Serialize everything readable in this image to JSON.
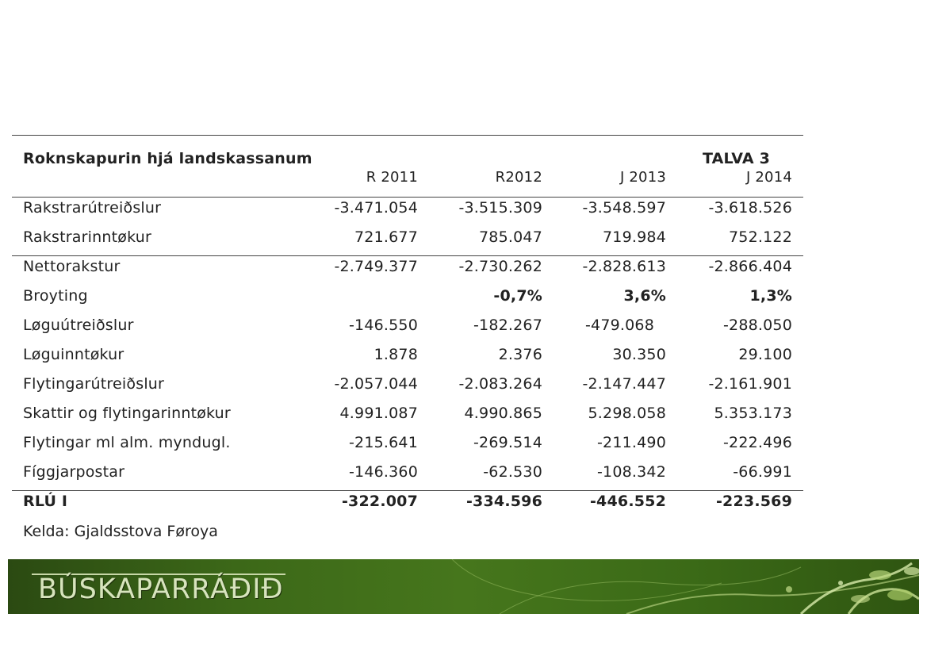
{
  "table": {
    "title": "Roknskapurin hjá landskassanum",
    "tag": "TALVA 3",
    "columns": [
      "R 2011",
      "R2012",
      "J 2013",
      "J 2014"
    ],
    "rows": [
      {
        "label": "Rakstrarútreiðslur",
        "values": [
          "-3.471.054",
          "-3.515.309",
          "-3.548.597",
          "-3.618.526"
        ]
      },
      {
        "label": "Rakstrarinntøkur",
        "values": [
          "721.677",
          "785.047",
          "719.984",
          "752.122"
        ]
      },
      {
        "label": "Nettorakstur",
        "values": [
          "-2.749.377",
          "-2.730.262",
          "-2.828.613",
          "-2.866.404"
        ]
      },
      {
        "label": "Broyting",
        "values": [
          "",
          "-0,7%",
          "3,6%",
          "1,3%"
        ]
      },
      {
        "label": "Løguútreiðslur",
        "values": [
          "-146.550",
          "-182.267",
          "-479.068",
          "-288.050"
        ]
      },
      {
        "label": "Løguinntøkur",
        "values": [
          "1.878",
          "2.376",
          "30.350",
          "29.100"
        ]
      },
      {
        "label": "Flytingarútreiðslur",
        "values": [
          "-2.057.044",
          "-2.083.264",
          "-2.147.447",
          "-2.161.901"
        ]
      },
      {
        "label": "Skattir og flytingarinntøkur",
        "values": [
          "4.991.087",
          "4.990.865",
          "5.298.058",
          "5.353.173"
        ]
      },
      {
        "label": "Flytingar ml alm. myndugl.",
        "values": [
          "-215.641",
          "-269.514",
          "-211.490",
          "-222.496"
        ]
      },
      {
        "label": "Fíggjarpostar",
        "values": [
          "-146.360",
          "-62.530",
          "-108.342",
          "-66.991"
        ]
      },
      {
        "label": "RLÚ I",
        "values": [
          "-322.007",
          "-334.596",
          "-446.552",
          "-223.569"
        ]
      }
    ],
    "source": "Kelda: Gjaldsstova Føroya"
  },
  "banner": {
    "logo_text": "BÚSKAPARRÁÐIÐ",
    "color_dark": "#2b4a12",
    "color_mid": "#46761c",
    "logo_color": "#d7e4bd"
  }
}
